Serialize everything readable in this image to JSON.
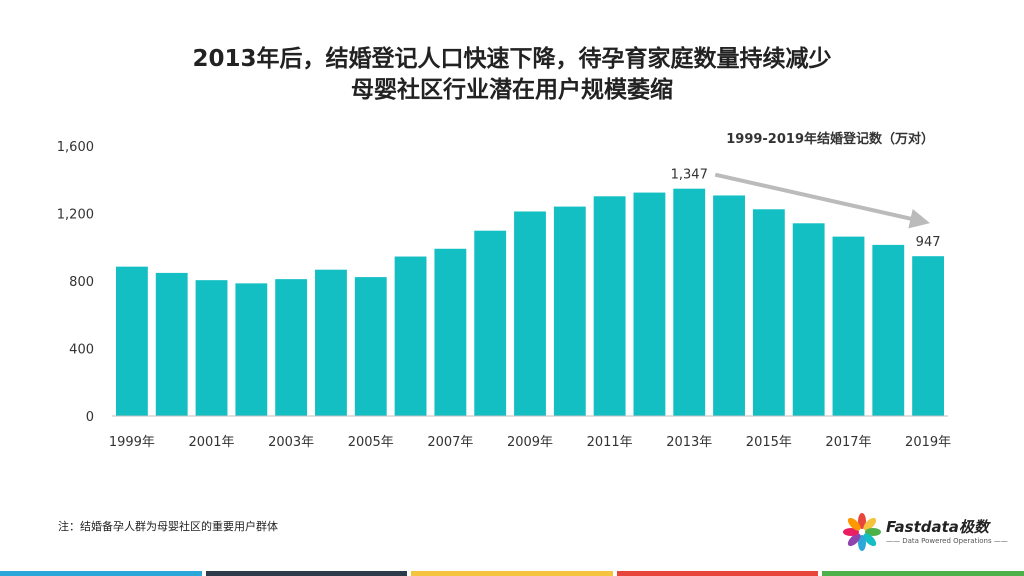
{
  "title_line1": "2013年后，结婚登记人口快速下降，待孕育家庭数量持续减少",
  "title_line2": "母婴社区行业潜在用户规模萎缩",
  "footnote": "注：结婚备孕人群为母婴社区的重要用户群体",
  "logo": {
    "name": "Fastdata极数",
    "tagline": "—— Data Powered Operations ——",
    "icon": "flower-logo-icon"
  },
  "colors": {
    "bar": "#13BFC3",
    "arrow": "#BBBBBB",
    "bottom_bar": [
      "#2BA8D9",
      "#2D3B4A",
      "#F5C33D",
      "#E8453C",
      "#4DB048"
    ]
  },
  "chart_data": {
    "type": "bar",
    "title": "1999-2019年结婚登记数（万对）",
    "categories": [
      "1999年",
      "2000年",
      "2001年",
      "2002年",
      "2003年",
      "2004年",
      "2005年",
      "2006年",
      "2007年",
      "2008年",
      "2009年",
      "2010年",
      "2011年",
      "2012年",
      "2013年",
      "2014年",
      "2015年",
      "2016年",
      "2017年",
      "2018年",
      "2019年"
    ],
    "tick_labels": [
      "1999年",
      "2001年",
      "2003年",
      "2005年",
      "2007年",
      "2009年",
      "2011年",
      "2013年",
      "2015年",
      "2017年",
      "2019年"
    ],
    "values": [
      885,
      848,
      805,
      786,
      811,
      867,
      823,
      945,
      991,
      1098,
      1212,
      1241,
      1302,
      1324,
      1347,
      1307,
      1225,
      1142,
      1063,
      1014,
      947
    ],
    "data_labels": [
      {
        "category": "2013年",
        "text": "1,347"
      },
      {
        "category": "2019年",
        "text": "947"
      }
    ],
    "ylim": [
      0,
      1600
    ],
    "yticks": [
      0,
      400,
      800,
      1200,
      1600
    ],
    "ytick_labels": [
      "0",
      "400",
      "800",
      "1,200",
      "1,600"
    ],
    "annotation": "downward arrow from 2013年 to 2019年",
    "grid": false,
    "xlabel": "",
    "ylabel": ""
  }
}
